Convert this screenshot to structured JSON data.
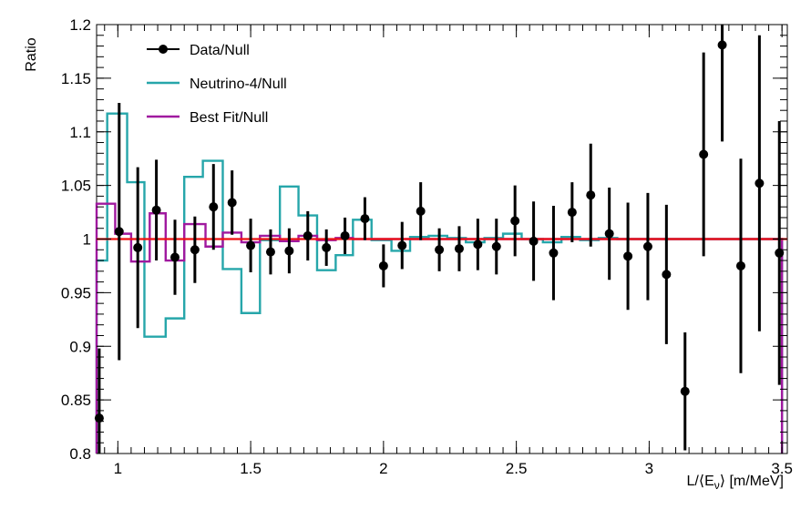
{
  "chart_data": {
    "type": "scatter",
    "xlabel": "L/⟨E_ν⟩ [m/MeV]",
    "ylabel": "Ratio",
    "xlim": [
      0.92,
      3.52
    ],
    "ylim": [
      0.8,
      1.2
    ],
    "x_ticks": [
      1,
      1.5,
      2,
      2.5,
      3,
      3.5
    ],
    "x_tick_labels": [
      "1",
      "1.5",
      "2",
      "2.5",
      "3",
      "3.5"
    ],
    "y_ticks": [
      0.8,
      0.85,
      0.9,
      0.95,
      1,
      1.05,
      1.1,
      1.15,
      1.2
    ],
    "y_tick_labels": [
      "0.8",
      "0.85",
      "0.9",
      "0.95",
      "1",
      "1.05",
      "1.1",
      "1.15",
      "1.2"
    ],
    "grid": false,
    "legend_position": "top-left",
    "series": [
      {
        "name": "Data/Null",
        "kind": "points_with_errors",
        "color": "#000000",
        "x": [
          0.93,
          1.005,
          1.075,
          1.145,
          1.215,
          1.29,
          1.36,
          1.43,
          1.5,
          1.575,
          1.645,
          1.715,
          1.785,
          1.855,
          1.93,
          2.0,
          2.07,
          2.14,
          2.21,
          2.285,
          2.355,
          2.425,
          2.495,
          2.565,
          2.64,
          2.71,
          2.78,
          2.85,
          2.92,
          2.995,
          3.065,
          3.135,
          3.205,
          3.275,
          3.345,
          3.415,
          3.49
        ],
        "y": [
          0.833,
          1.007,
          0.992,
          1.027,
          0.983,
          0.99,
          1.03,
          1.034,
          0.994,
          0.988,
          0.989,
          1.003,
          0.992,
          1.003,
          1.019,
          0.975,
          0.994,
          1.026,
          0.99,
          0.991,
          0.995,
          0.993,
          1.017,
          0.998,
          0.987,
          1.025,
          1.041,
          1.005,
          0.984,
          0.993,
          0.967,
          0.858,
          1.079,
          1.181,
          0.975,
          1.052,
          0.987
        ],
        "err": [
          0.065,
          0.12,
          0.075,
          0.047,
          0.035,
          0.031,
          0.04,
          0.03,
          0.025,
          0.021,
          0.021,
          0.023,
          0.017,
          0.017,
          0.02,
          0.02,
          0.022,
          0.027,
          0.02,
          0.021,
          0.024,
          0.026,
          0.033,
          0.037,
          0.044,
          0.028,
          0.048,
          0.043,
          0.05,
          0.05,
          0.065,
          0.055,
          0.095,
          0.09,
          0.1,
          0.138,
          0.123
        ]
      },
      {
        "name": "Neutrino-4/Null",
        "kind": "step",
        "color": "#26a6aa",
        "edges": [
          0.92,
          0.96,
          1.035,
          1.1,
          1.18,
          1.25,
          1.32,
          1.395,
          1.465,
          1.535,
          1.61,
          1.68,
          1.75,
          1.82,
          1.885,
          1.955,
          2.03,
          2.1,
          2.17,
          2.24,
          2.31,
          2.38,
          2.45,
          2.52,
          2.6,
          2.67,
          2.74,
          2.81,
          2.88,
          3.5
        ],
        "values": [
          0.98,
          1.117,
          1.053,
          0.909,
          0.926,
          1.058,
          1.073,
          0.972,
          0.931,
          0.999,
          1.049,
          1.022,
          0.971,
          0.985,
          1.018,
          0.999,
          0.989,
          1.002,
          1.003,
          1.001,
          0.997,
          1.001,
          1.005,
          1.0,
          0.997,
          1.002,
          0.999,
          1.001,
          1.0
        ]
      },
      {
        "name": "Best Fit/Null",
        "kind": "step",
        "color": "#a0199f",
        "edges": [
          0.92,
          0.99,
          1.05,
          1.12,
          1.18,
          1.25,
          1.33,
          1.395,
          1.465,
          1.535,
          1.61,
          1.68,
          1.75,
          1.82,
          1.885,
          1.955,
          2.03,
          3.5
        ],
        "values": [
          1.033,
          1.005,
          0.979,
          1.024,
          0.98,
          1.014,
          0.993,
          1.006,
          0.997,
          1.003,
          0.998,
          1.003,
          0.999,
          1.001,
          1.0,
          1.0,
          1.0
        ]
      },
      {
        "name": "",
        "kind": "hline",
        "color": "#ee1111",
        "y": 1
      }
    ]
  }
}
